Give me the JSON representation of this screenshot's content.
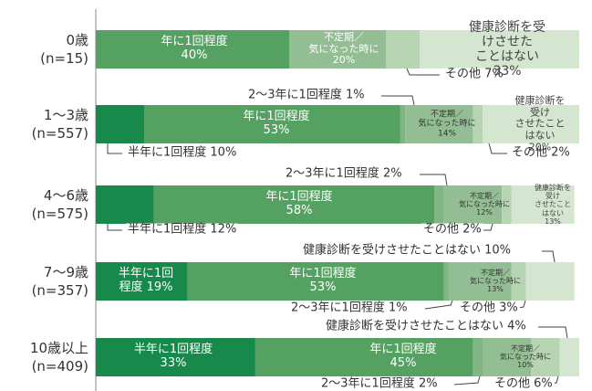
{
  "chart_data": {
    "type": "stacked-bar-horizontal",
    "categories": [
      "0歳\n(n=15)",
      "1〜3歳\n(n=557)",
      "4〜6歳\n(n=575)",
      "7〜9歳\n(n=357)",
      "10歳以上\n(n=409)"
    ],
    "xlim": [
      0,
      100
    ],
    "series": [
      {
        "color": "#17894a",
        "values": [
          0,
          10,
          12,
          19,
          33
        ],
        "value_labels": [
          null,
          "半年に1回程度 10%",
          "半年に1回程度 12%",
          "半年に1回\n程度 19%",
          "半年に1回程度\n33%"
        ]
      },
      {
        "color": "#54a162",
        "values": [
          40,
          53,
          58,
          53,
          45
        ],
        "value_labels": [
          "年に1回程度\n40%",
          "年に1回程度\n53%",
          "年に1回程度\n58%",
          "年に1回程度\n53%",
          "年に1回程度\n45%"
        ]
      },
      {
        "color": "#7fb684",
        "values": [
          0,
          1,
          2,
          1,
          2
        ],
        "value_labels": [
          null,
          "2〜3年に1回程度 1%",
          "2〜3年に1回程度 2%",
          "2〜3年に1回程度 1%",
          "2〜3年に1回程度 2%"
        ]
      },
      {
        "color": "#93bd92",
        "values": [
          20,
          14,
          12,
          13,
          10
        ],
        "value_labels": [
          "不定期／\n気になった時に\n20%",
          "不定期／\n気になった時に\n14%",
          "不定期／\n気になった時に\n12%",
          "不定期／\n気になった時に\n13%",
          "不定期／\n気になった時に\n10%"
        ]
      },
      {
        "color": "#b6d4b1",
        "values": [
          7,
          2,
          2,
          3,
          6
        ],
        "value_labels": [
          "その他 7%",
          "その他 2%",
          "その他 2%",
          "その他 3%",
          "その他 6%"
        ]
      },
      {
        "color": "#d4e5d0",
        "values": [
          33,
          20,
          13,
          10,
          4
        ],
        "value_labels": [
          "健康診断を受けさせた\nことはない 33%",
          "健康診断を受け\nさせたことはない\n20%",
          "健康診断を受け\nさせたことはない\n13%",
          "健康診断を受けさせたことはない 10%",
          "健康診断を受けさせたことはない 4%"
        ]
      }
    ]
  }
}
